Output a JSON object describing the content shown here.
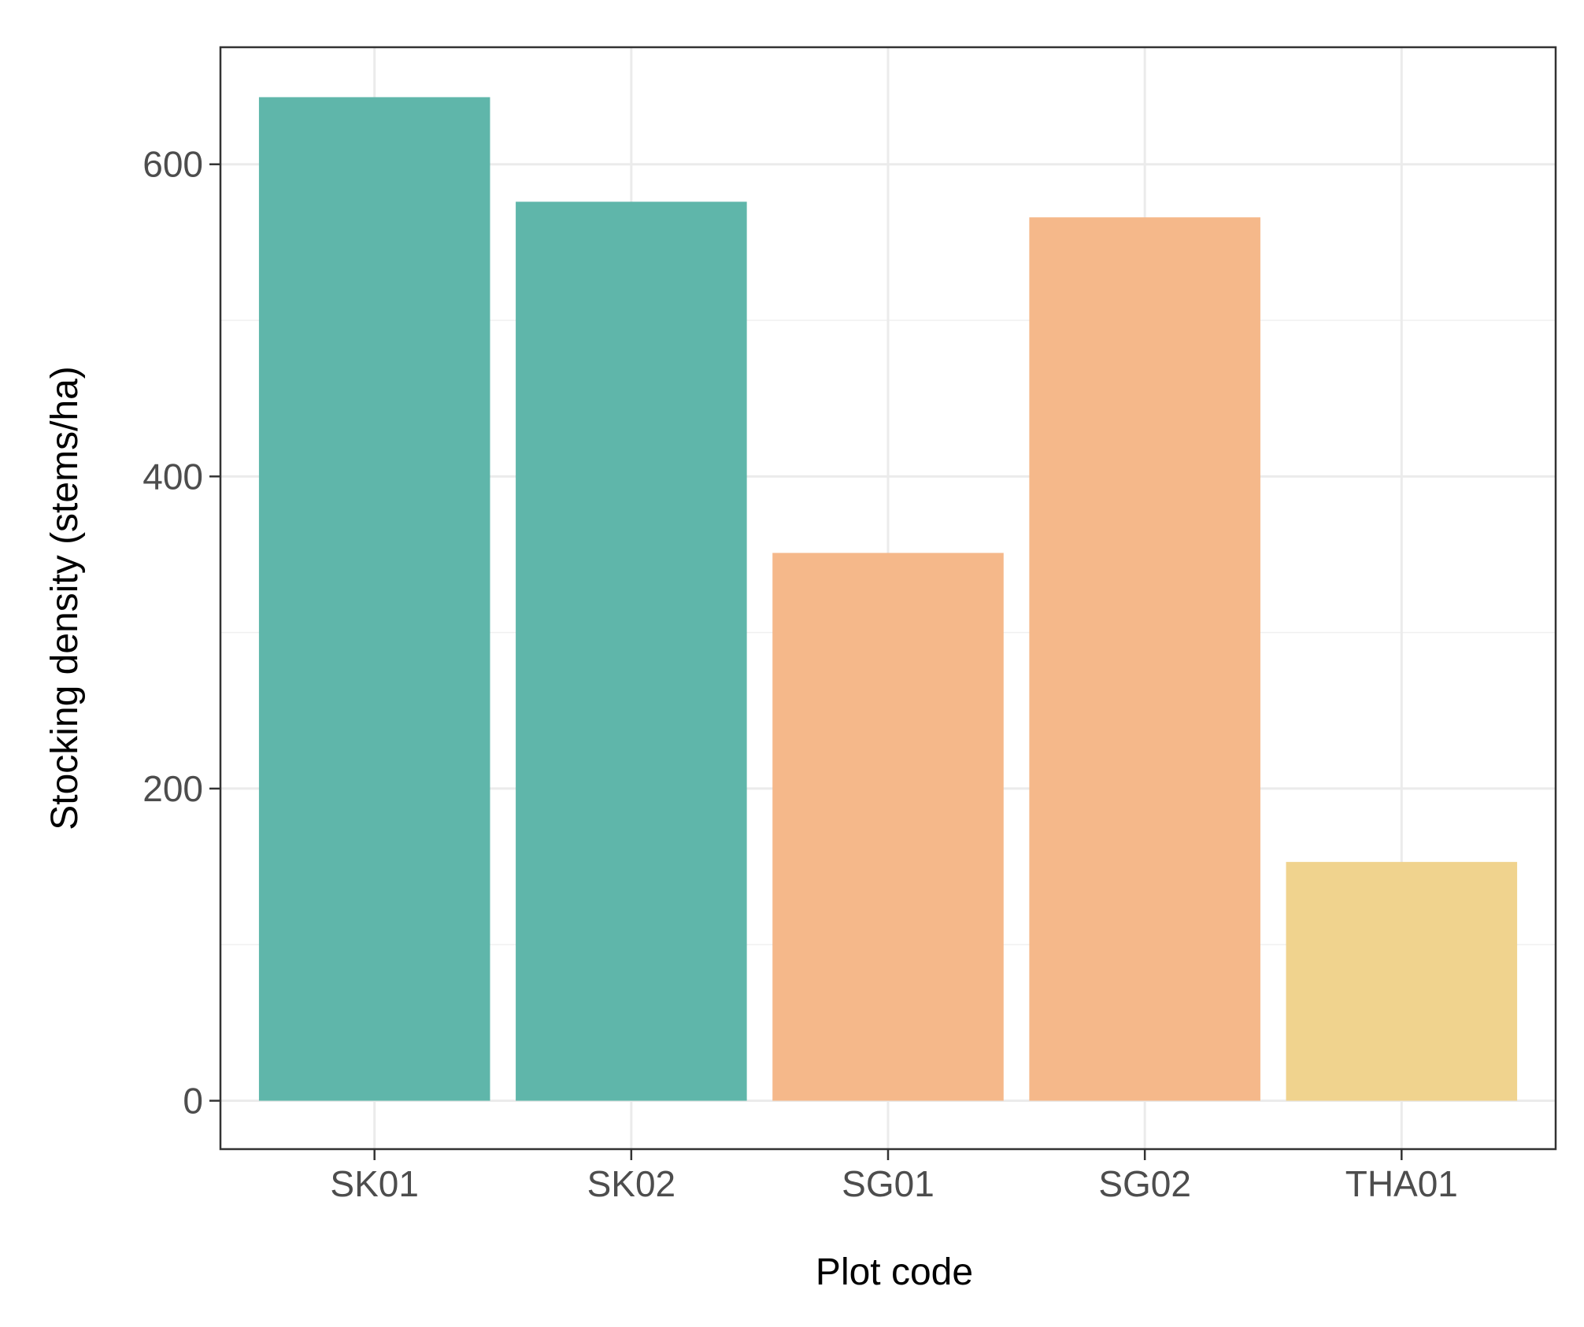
{
  "chart_data": {
    "type": "bar",
    "categories": [
      "SK01",
      "SK02",
      "SG01",
      "SG02",
      "THA01"
    ],
    "values": [
      643,
      576,
      351,
      566,
      153
    ],
    "bar_colors": [
      "#5fb6aa",
      "#5fb6aa",
      "#f5b88a",
      "#f5b88a",
      "#f0d38e"
    ],
    "xlabel": "Plot code",
    "ylabel": "Stocking density (stems/ha)",
    "ylim": [
      -31,
      675
    ],
    "yticks": [
      0,
      200,
      400,
      600
    ],
    "grid": true,
    "legend": "none"
  }
}
